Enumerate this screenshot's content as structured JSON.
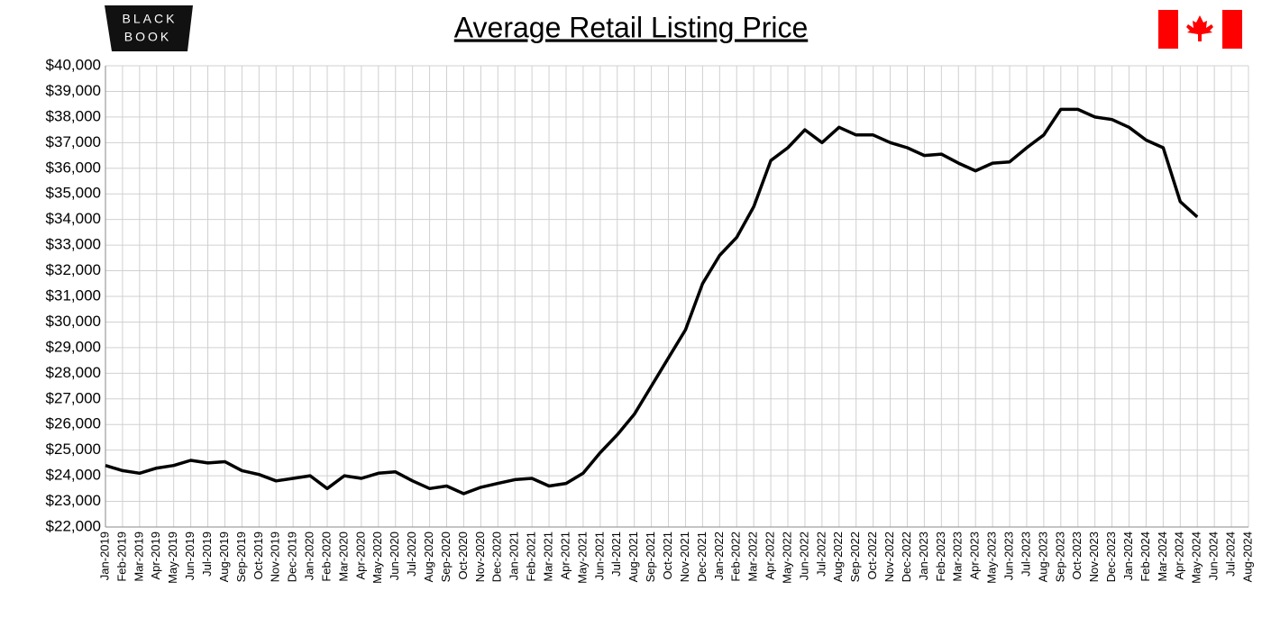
{
  "chart_data": {
    "type": "line",
    "title": "Average Retail Listing Price",
    "logo": [
      "BLACK",
      "BOOK"
    ],
    "categories": [
      "Jan-2019",
      "Feb-2019",
      "Mar-2019",
      "Apr-2019",
      "May-2019",
      "Jun-2019",
      "Jul-2019",
      "Aug-2019",
      "Sep-2019",
      "Oct-2019",
      "Nov-2019",
      "Dec-2019",
      "Jan-2020",
      "Feb-2020",
      "Mar-2020",
      "Apr-2020",
      "May-2020",
      "Jun-2020",
      "Jul-2020",
      "Aug-2020",
      "Sep-2020",
      "Oct-2020",
      "Nov-2020",
      "Dec-2020",
      "Jan-2021",
      "Feb-2021",
      "Mar-2021",
      "Apr-2021",
      "May-2021",
      "Jun-2021",
      "Jul-2021",
      "Aug-2021",
      "Sep-2021",
      "Oct-2021",
      "Nov-2021",
      "Dec-2021",
      "Jan-2022",
      "Feb-2022",
      "Mar-2022",
      "Apr-2022",
      "May-2022",
      "Jun-2022",
      "Jul-2022",
      "Aug-2022",
      "Sep-2022",
      "Oct-2022",
      "Nov-2022",
      "Dec-2022",
      "Jan-2023",
      "Feb-2023",
      "Mar-2023",
      "Apr-2023",
      "May-2023",
      "Jun-2023",
      "Jul-2023",
      "Aug-2023",
      "Sep-2023",
      "Oct-2023",
      "Nov-2023",
      "Dec-2023",
      "Jan-2024",
      "Feb-2024",
      "Mar-2024",
      "Apr-2024",
      "May-2024",
      "Jun-2024",
      "Jul-2024",
      "Aug-2024"
    ],
    "values": [
      24400,
      24200,
      24100,
      24300,
      24400,
      24600,
      24500,
      24550,
      24200,
      24050,
      23800,
      23900,
      24000,
      23500,
      24000,
      23900,
      24100,
      24150,
      23800,
      23500,
      23600,
      23300,
      23550,
      23700,
      23850,
      23900,
      23600,
      23700,
      24100,
      24900,
      25600,
      26400,
      27500,
      28600,
      29700,
      31500,
      32600,
      33300,
      34500,
      36300,
      36800,
      37500,
      37000,
      37600,
      37300,
      37300,
      37000,
      36800,
      36500,
      36550,
      36200,
      35900,
      36200,
      36250,
      36800,
      37300,
      38300,
      38300,
      38000,
      37900,
      37600,
      37100,
      36800,
      34700,
      34100,
      null,
      null,
      null
    ],
    "color": "#000000",
    "ylim": [
      22000,
      40000
    ],
    "yticks": [
      {
        "value": 22000,
        "label": "$22,000"
      },
      {
        "value": 23000,
        "label": "$23,000"
      },
      {
        "value": 24000,
        "label": "$24,000"
      },
      {
        "value": 25000,
        "label": "$25,000"
      },
      {
        "value": 26000,
        "label": "$26,000"
      },
      {
        "value": 27000,
        "label": "$27,000"
      },
      {
        "value": 28000,
        "label": "$28,000"
      },
      {
        "value": 29000,
        "label": "$29,000"
      },
      {
        "value": 30000,
        "label": "$30,000"
      },
      {
        "value": 31000,
        "label": "$31,000"
      },
      {
        "value": 32000,
        "label": "$32,000"
      },
      {
        "value": 33000,
        "label": "$33,000"
      },
      {
        "value": 34000,
        "label": "$34,000"
      },
      {
        "value": 35000,
        "label": "$35,000"
      },
      {
        "value": 36000,
        "label": "$36,000"
      },
      {
        "value": 37000,
        "label": "$37,000"
      },
      {
        "value": 38000,
        "label": "$38,000"
      },
      {
        "value": 39000,
        "label": "$39,000"
      },
      {
        "value": 40000,
        "label": "$40,000"
      }
    ],
    "grid": true
  }
}
